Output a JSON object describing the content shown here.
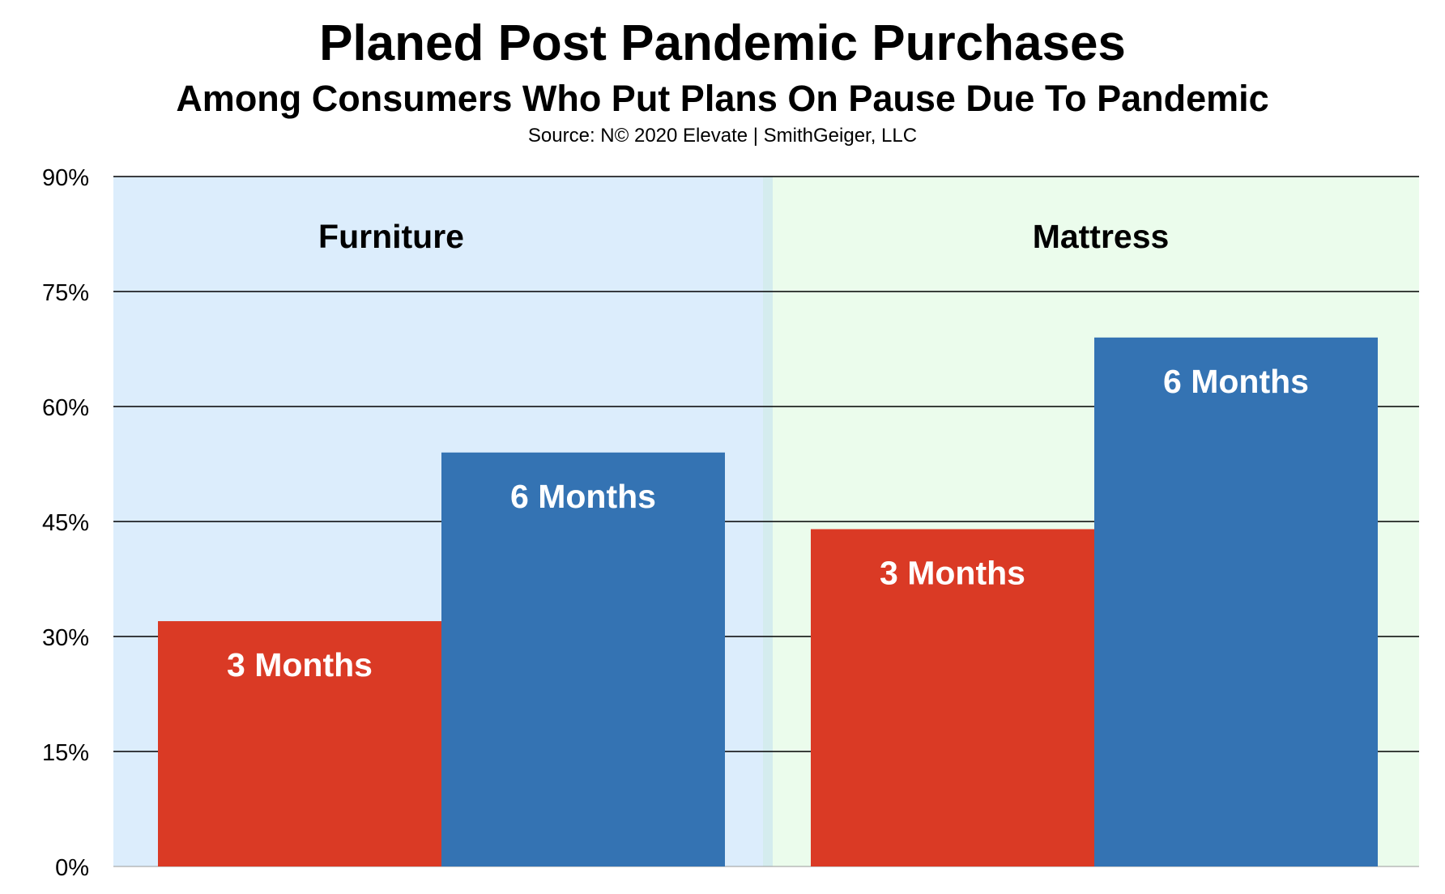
{
  "chart_data": {
    "type": "bar",
    "title": "Planed Post Pandemic Purchases",
    "subtitle": "Among Consumers Who Put Plans On Pause Due To Pandemic",
    "source": "Source: N© 2020 Elevate | SmithGeiger, LLC",
    "ylim": [
      0,
      90
    ],
    "yticks": [
      "0%",
      "15%",
      "30%",
      "45%",
      "60%",
      "75%",
      "90%"
    ],
    "ytick_values": [
      0,
      15,
      30,
      45,
      60,
      75,
      90
    ],
    "grid": true,
    "groups": [
      {
        "name": "Furniture",
        "background": "#dcedfc",
        "bars": [
          {
            "label": "3 Months",
            "value": 32,
            "color": "#da3a25"
          },
          {
            "label": "6 Months",
            "value": 54,
            "color": "#3473b3"
          }
        ]
      },
      {
        "name": "Mattress",
        "background": "#ebfcec",
        "bars": [
          {
            "label": "3 Months",
            "value": 44,
            "color": "#da3a25"
          },
          {
            "label": "6 Months",
            "value": 69,
            "color": "#3473b3"
          }
        ]
      }
    ]
  }
}
